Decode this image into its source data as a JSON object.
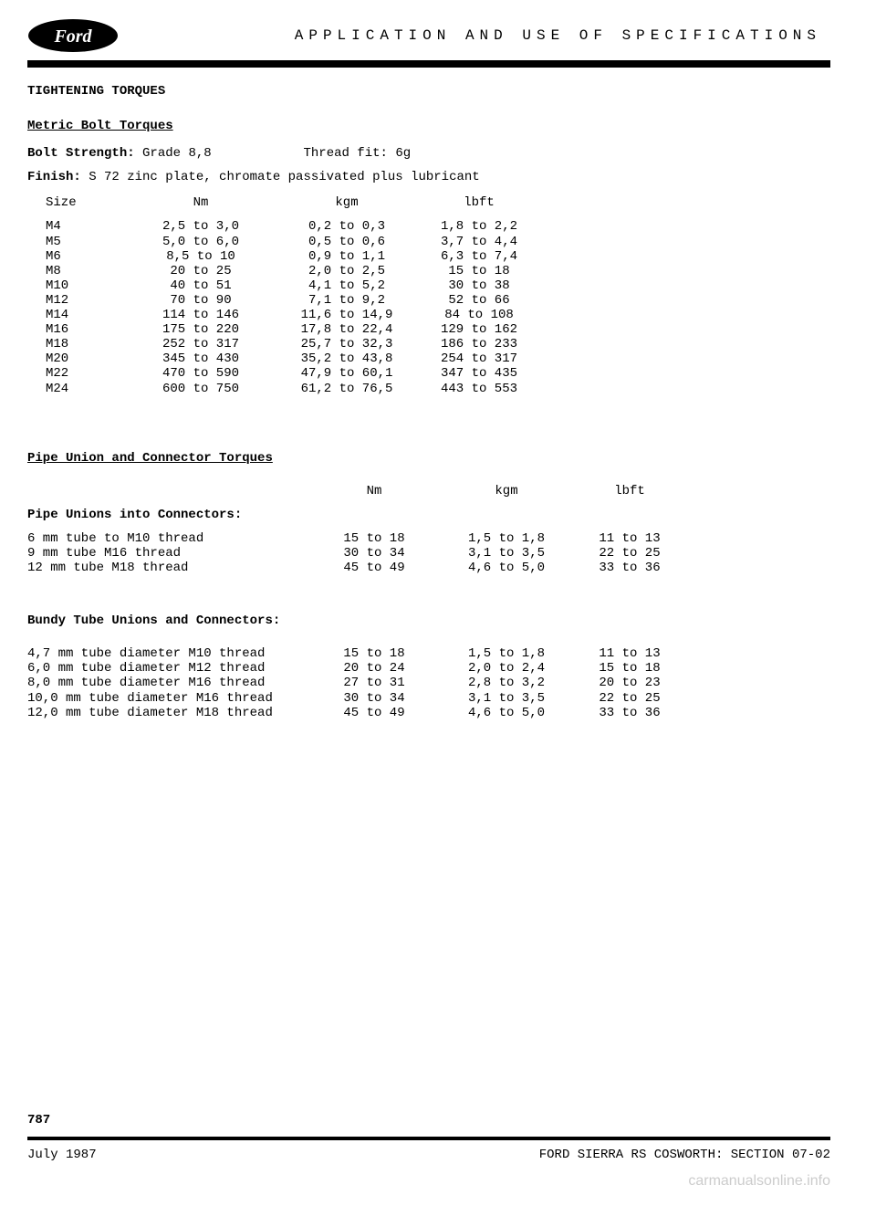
{
  "header": {
    "title": "APPLICATION AND USE OF SPECIFICATIONS"
  },
  "section1": {
    "title": "TIGHTENING TORQUES",
    "subtitle": "Metric Bolt Torques",
    "bolt_strength_label": "Bolt Strength:",
    "bolt_strength_value": "Grade 8,8",
    "thread_fit_label": "Thread fit:",
    "thread_fit_value": "6g",
    "finish_label": "Finish:",
    "finish_value": "S 72 zinc plate, chromate passivated plus lubricant",
    "cols": {
      "c1": "Size",
      "c2": "Nm",
      "c3": "kgm",
      "c4": "lbft"
    },
    "rows": [
      {
        "size": "M4",
        "nm": "2,5 to 3,0",
        "kgm": "0,2 to 0,3",
        "lbft": "1,8 to 2,2"
      },
      {
        "size": "M5",
        "nm": "5,0 to 6,0",
        "kgm": "0,5 to 0,6",
        "lbft": "3,7 to 4,4"
      },
      {
        "size": "M6",
        "nm": "8,5 to 10",
        "kgm": "0,9 to 1,1",
        "lbft": "6,3 to 7,4"
      },
      {
        "size": "M8",
        "nm": "20 to 25",
        "kgm": "2,0 to 2,5",
        "lbft": "15 to 18"
      },
      {
        "size": "M10",
        "nm": "40 to 51",
        "kgm": "4,1 to 5,2",
        "lbft": "30 to 38"
      },
      {
        "size": "M12",
        "nm": "70 to 90",
        "kgm": "7,1 to 9,2",
        "lbft": "52 to 66"
      },
      {
        "size": "M14",
        "nm": "114 to 146",
        "kgm": "11,6 to 14,9",
        "lbft": "84 to 108"
      },
      {
        "size": "M16",
        "nm": "175 to 220",
        "kgm": "17,8 to 22,4",
        "lbft": "129 to 162"
      },
      {
        "size": "M18",
        "nm": "252 to 317",
        "kgm": "25,7 to 32,3",
        "lbft": "186 to 233"
      },
      {
        "size": "M20",
        "nm": "345 to 430",
        "kgm": "35,2 to 43,8",
        "lbft": "254 to 317"
      },
      {
        "size": "M22",
        "nm": "470 to 590",
        "kgm": "47,9 to 60,1",
        "lbft": "347 to 435"
      },
      {
        "size": "M24",
        "nm": "600 to 750",
        "kgm": "61,2 to 76,5",
        "lbft": "443 to 553"
      }
    ]
  },
  "section2": {
    "title": "Pipe Union and Connector Torques",
    "cols": {
      "c1": "",
      "c2": "Nm",
      "c3": "kgm",
      "c4": "lbft"
    },
    "pipe_label": "Pipe Unions into Connectors:",
    "pipe_rows": [
      {
        "desc": "6 mm tube to M10 thread",
        "nm": "15 to 18",
        "kgm": "1,5 to 1,8",
        "lbft": "11 to 13"
      },
      {
        "desc": "9 mm tube M16 thread",
        "nm": "30 to 34",
        "kgm": "3,1 to 3,5",
        "lbft": "22 to 25"
      },
      {
        "desc": "12 mm tube M18 thread",
        "nm": "45 to 49",
        "kgm": "4,6 to 5,0",
        "lbft": "33 to 36"
      }
    ],
    "bundy_label": "Bundy Tube Unions and Connectors:",
    "bundy_rows": [
      {
        "desc": "4,7 mm tube diameter M10 thread",
        "nm": "15 to 18",
        "kgm": "1,5 to 1,8",
        "lbft": "11 to 13"
      },
      {
        "desc": "6,0 mm tube diameter M12 thread",
        "nm": "20 to 24",
        "kgm": "2,0 to 2,4",
        "lbft": "15 to 18"
      },
      {
        "desc": "8,0 mm tube diameter M16 thread",
        "nm": "27 to 31",
        "kgm": "2,8 to 3,2",
        "lbft": "20 to 23"
      },
      {
        "desc": "10,0 mm tube diameter M16 thread",
        "nm": "30 to 34",
        "kgm": "3,1 to 3,5",
        "lbft": "22 to 25"
      },
      {
        "desc": "12,0 mm tube diameter M18 thread",
        "nm": "45 to 49",
        "kgm": "4,6 to 5,0",
        "lbft": "33 to 36"
      }
    ]
  },
  "footer": {
    "page": "787",
    "date": "July 1987",
    "manual": "FORD SIERRA RS COSWORTH: SECTION 07-02",
    "watermark": "carmanualsonline.info"
  }
}
